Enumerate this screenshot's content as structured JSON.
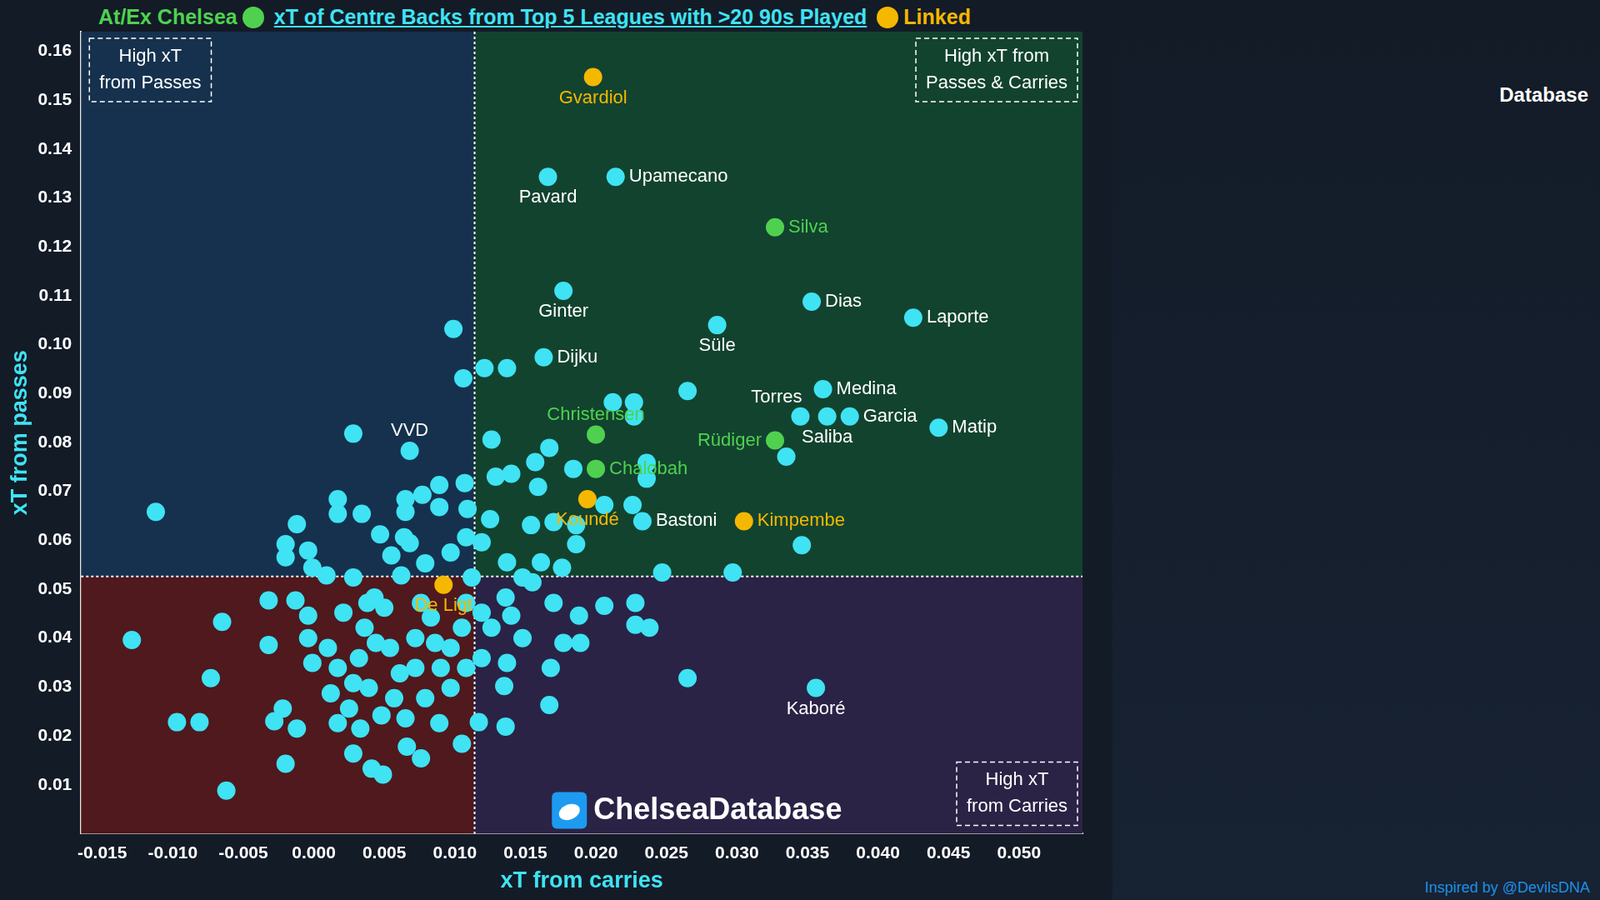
{
  "chart_data": {
    "type": "scatter",
    "title": "xT of Centre Backs from Top 5 Leagues with >20 90s Played",
    "x_label": "xT from carries",
    "y_label": "xT from passes",
    "xlim": [
      -0.0165,
      0.0545
    ],
    "ylim": [
      0,
      0.164
    ],
    "xticks": [
      -0.015,
      {
        "value": -0.01,
        "label": "-0.010"
      },
      -0.005,
      {
        "value": 0,
        "label": "0.000"
      },
      0.005,
      {
        "value": 0.01,
        "label": "0.010"
      },
      0.015,
      {
        "value": 0.02,
        "label": "0.020"
      },
      0.025,
      {
        "value": 0.03,
        "label": "0.030"
      },
      0.035,
      {
        "value": 0.04,
        "label": "0.040"
      },
      0.045,
      {
        "value": 0.05,
        "label": "0.050"
      }
    ],
    "yticks": [
      0.01,
      0.02,
      0.03,
      0.04,
      0.05,
      0.06,
      0.07,
      0.08,
      0.09,
      {
        "value": 0.1,
        "label": "0.10"
      },
      0.11,
      0.12,
      0.13,
      0.14,
      0.15,
      0.16
    ],
    "grid": false,
    "legend": "top",
    "reference_lines": {
      "x": 0.0114,
      "y": 0.0526
    },
    "quadrant_labels": {
      "top_left": [
        "High xT",
        "from Passes"
      ],
      "top_right": [
        "High xT from",
        "Passes & Carries"
      ],
      "bottom_right": [
        "High xT",
        "from Carries"
      ]
    },
    "watermark": "ChelseaDatabase",
    "logo_text": "Database",
    "credit": "Inspired by @DevilsDNA",
    "series": [
      {
        "color": "#3fe3f3",
        "points": [
          {
            "x": 0.0166,
            "y": 0.1343,
            "label": "Pavard"
          },
          {
            "x": 0.0214,
            "y": 0.1343,
            "label": "Upamecano"
          },
          {
            "x": 0.0177,
            "y": 0.111,
            "label": "Ginter"
          },
          {
            "x": 0.0353,
            "y": 0.1088,
            "label": "Dias"
          },
          {
            "x": 0.0425,
            "y": 0.1055,
            "label": "Laporte"
          },
          {
            "x": 0.0286,
            "y": 0.104,
            "label": "Süle"
          },
          {
            "x": 0.0163,
            "y": 0.0974,
            "label": "Dijku"
          },
          {
            "x": 0.0361,
            "y": 0.0909,
            "label": "Medina"
          },
          {
            "x": 0.0345,
            "y": 0.0853,
            "label": "Torres"
          },
          {
            "x": 0.0364,
            "y": 0.0853,
            "label": "Saliba"
          },
          {
            "x": 0.038,
            "y": 0.0853,
            "label": "Garcia"
          },
          {
            "x": 0.0443,
            "y": 0.083,
            "label": "Matip"
          },
          {
            "x": 0.0233,
            "y": 0.0639,
            "label": "Bastoni"
          },
          {
            "x": 0.0068,
            "y": 0.0783,
            "label": "VVD"
          },
          {
            "x": 0.0356,
            "y": 0.0298,
            "label": "Kaboré"
          },
          {
            "x": 0.0099,
            "y": 0.1032
          },
          {
            "x": 0.0121,
            "y": 0.0952
          },
          {
            "x": 0.0137,
            "y": 0.0952
          },
          {
            "x": 0.0106,
            "y": 0.0931
          },
          {
            "x": 0.0028,
            "y": 0.0818
          },
          {
            "x": -0.0112,
            "y": 0.0658
          },
          {
            "x": 0.0126,
            "y": 0.0806
          },
          {
            "x": 0.0167,
            "y": 0.0789
          },
          {
            "x": 0.0157,
            "y": 0.076
          },
          {
            "x": 0.0184,
            "y": 0.0746
          },
          {
            "x": 0.0212,
            "y": 0.0882
          },
          {
            "x": 0.0227,
            "y": 0.0882
          },
          {
            "x": 0.0227,
            "y": 0.0853
          },
          {
            "x": 0.0265,
            "y": 0.0905
          },
          {
            "x": 0.0236,
            "y": 0.0758
          },
          {
            "x": 0.0236,
            "y": 0.0726
          },
          {
            "x": 0.0335,
            "y": 0.0771
          },
          {
            "x": 0.0346,
            "y": 0.059
          },
          {
            "x": 0.0297,
            "y": 0.0534
          },
          {
            "x": 0.0247,
            "y": 0.0534
          },
          {
            "x": 0.0159,
            "y": 0.0709
          },
          {
            "x": 0.0129,
            "y": 0.073
          },
          {
            "x": 0.014,
            "y": 0.0736
          },
          {
            "x": 0.0107,
            "y": 0.0717
          },
          {
            "x": 0.0089,
            "y": 0.0713
          },
          {
            "x": 0.0109,
            "y": 0.0664
          },
          {
            "x": 0.0089,
            "y": 0.0668
          },
          {
            "x": 0.0065,
            "y": 0.0658
          },
          {
            "x": 0.0077,
            "y": 0.0693
          },
          {
            "x": 0.0065,
            "y": 0.0684
          },
          {
            "x": 0.0017,
            "y": 0.0684
          },
          {
            "x": 0.0017,
            "y": 0.0654
          },
          {
            "x": 0.0034,
            "y": 0.0654
          },
          {
            "x": -0.0012,
            "y": 0.0633
          },
          {
            "x": -0.002,
            "y": 0.0592
          },
          {
            "x": -0.002,
            "y": 0.0565
          },
          {
            "x": -0.0004,
            "y": 0.0579
          },
          {
            "x": 0.0047,
            "y": 0.0612
          },
          {
            "x": 0.0064,
            "y": 0.0606
          },
          {
            "x": 0.0068,
            "y": 0.0594
          },
          {
            "x": 0.0055,
            "y": 0.0569
          },
          {
            "x": 0.0079,
            "y": 0.0553
          },
          {
            "x": 0.0097,
            "y": 0.0575
          },
          {
            "x": 0.0108,
            "y": 0.0606
          },
          {
            "x": 0.0119,
            "y": 0.0596
          },
          {
            "x": 0.0125,
            "y": 0.0643
          },
          {
            "x": 0.0154,
            "y": 0.0631
          },
          {
            "x": 0.017,
            "y": 0.0637
          },
          {
            "x": 0.0186,
            "y": 0.0631
          },
          {
            "x": 0.0186,
            "y": 0.0592
          },
          {
            "x": 0.0206,
            "y": 0.0672
          },
          {
            "x": 0.0226,
            "y": 0.0672
          },
          {
            "x": 0.0137,
            "y": 0.0555
          },
          {
            "x": 0.0161,
            "y": 0.0555
          },
          {
            "x": 0.0176,
            "y": 0.0544
          },
          {
            "x": 0.0009,
            "y": 0.0528
          },
          {
            "x": 0.0028,
            "y": 0.0524
          },
          {
            "x": -0.0129,
            "y": 0.0396
          },
          {
            "x": -0.0065,
            "y": 0.0433
          },
          {
            "x": -0.0032,
            "y": 0.0477
          },
          {
            "x": -0.0032,
            "y": 0.0386
          },
          {
            "x": -0.0013,
            "y": 0.0477
          },
          {
            "x": -0.0004,
            "y": 0.0446
          },
          {
            "x": -0.0073,
            "y": 0.0318
          },
          {
            "x": -0.0097,
            "y": 0.0228
          },
          {
            "x": -0.0081,
            "y": 0.0228
          },
          {
            "x": -0.0062,
            "y": 0.0088
          },
          {
            "x": -0.0028,
            "y": 0.023
          },
          {
            "x": -0.0022,
            "y": 0.0256
          },
          {
            "x": -0.0012,
            "y": 0.0215
          },
          {
            "x": -0.002,
            "y": 0.0143
          },
          {
            "x": -0.0001,
            "y": 0.0349
          },
          {
            "x": 0.001,
            "y": 0.038
          },
          {
            "x": 0.0017,
            "y": 0.0339
          },
          {
            "x": 0.0012,
            "y": 0.0287
          },
          {
            "x": 0.0025,
            "y": 0.0256
          },
          {
            "x": 0.0028,
            "y": 0.0164
          },
          {
            "x": 0.0041,
            "y": 0.0133
          },
          {
            "x": 0.0049,
            "y": 0.0121
          },
          {
            "x": 0.0033,
            "y": 0.0215
          },
          {
            "x": 0.0048,
            "y": 0.0242
          },
          {
            "x": 0.0039,
            "y": 0.0298
          },
          {
            "x": 0.0032,
            "y": 0.0359
          },
          {
            "x": 0.0036,
            "y": 0.0421
          },
          {
            "x": 0.0038,
            "y": 0.0472
          },
          {
            "x": 0.005,
            "y": 0.0462
          },
          {
            "x": 0.0054,
            "y": 0.038
          },
          {
            "x": 0.0061,
            "y": 0.0328
          },
          {
            "x": 0.0065,
            "y": 0.0236
          },
          {
            "x": 0.0066,
            "y": 0.0178
          },
          {
            "x": 0.0076,
            "y": 0.0154
          },
          {
            "x": 0.0079,
            "y": 0.0277
          },
          {
            "x": 0.0072,
            "y": 0.04
          },
          {
            "x": 0.0083,
            "y": 0.0442
          },
          {
            "x": 0.0076,
            "y": 0.0472
          },
          {
            "x": 0.0089,
            "y": 0.0226
          },
          {
            "x": 0.009,
            "y": 0.0339
          },
          {
            "x": 0.0097,
            "y": 0.038
          },
          {
            "x": 0.0105,
            "y": 0.0421
          },
          {
            "x": 0.0108,
            "y": 0.0339
          },
          {
            "x": 0.0117,
            "y": 0.0228
          },
          {
            "x": 0.0136,
            "y": 0.0219
          },
          {
            "x": 0.0135,
            "y": 0.0302
          },
          {
            "x": 0.0119,
            "y": 0.0452
          },
          {
            "x": 0.0126,
            "y": 0.0421
          },
          {
            "x": 0.0136,
            "y": 0.0483
          },
          {
            "x": 0.014,
            "y": 0.0446
          },
          {
            "x": 0.0148,
            "y": 0.04
          },
          {
            "x": 0.0137,
            "y": 0.0349
          },
          {
            "x": 0.0155,
            "y": 0.0514
          },
          {
            "x": 0.0168,
            "y": 0.0339
          },
          {
            "x": 0.0167,
            "y": 0.0263
          },
          {
            "x": 0.0177,
            "y": 0.039
          },
          {
            "x": 0.0189,
            "y": 0.039
          },
          {
            "x": 0.0188,
            "y": 0.0446
          },
          {
            "x": 0.017,
            "y": 0.0472
          },
          {
            "x": 0.0206,
            "y": 0.0466
          },
          {
            "x": 0.0228,
            "y": 0.0472
          },
          {
            "x": 0.0228,
            "y": 0.0427
          },
          {
            "x": 0.0238,
            "y": 0.0421
          },
          {
            "x": 0.0265,
            "y": 0.0318
          },
          {
            "x": 0.0112,
            "y": 0.0524
          },
          {
            "x": -0.0001,
            "y": 0.0544
          },
          {
            "x": 0.0062,
            "y": 0.0528
          },
          {
            "x": 0.0043,
            "y": 0.0483
          },
          {
            "x": 0.0021,
            "y": 0.0452
          },
          {
            "x": -0.0004,
            "y": 0.04
          },
          {
            "x": 0.0097,
            "y": 0.0298
          },
          {
            "x": 0.0119,
            "y": 0.0359
          },
          {
            "x": 0.0057,
            "y": 0.0277
          },
          {
            "x": 0.0017,
            "y": 0.0226
          },
          {
            "x": 0.0105,
            "y": 0.0184
          },
          {
            "x": 0.0044,
            "y": 0.039
          },
          {
            "x": 0.0028,
            "y": 0.0308
          },
          {
            "x": 0.0072,
            "y": 0.0339
          },
          {
            "x": 0.0086,
            "y": 0.039
          },
          {
            "x": 0.0108,
            "y": 0.0472
          },
          {
            "x": 0.0148,
            "y": 0.0524
          }
        ]
      },
      {
        "name": "At/Ex Chelsea",
        "color": "#4fd14f",
        "points": [
          {
            "x": 0.0327,
            "y": 0.124,
            "label": "Silva"
          },
          {
            "x": 0.02,
            "y": 0.0816,
            "label": "Christensen"
          },
          {
            "x": 0.0327,
            "y": 0.0804,
            "label": "Rüdiger"
          },
          {
            "x": 0.02,
            "y": 0.0746,
            "label": "Chalobah"
          }
        ]
      },
      {
        "name": "Linked",
        "color": "#f5b800",
        "points": [
          {
            "x": 0.0198,
            "y": 0.1547,
            "label": "Gvardiol"
          },
          {
            "x": 0.0194,
            "y": 0.0684,
            "label": "Koundé"
          },
          {
            "x": 0.0305,
            "y": 0.0639,
            "label": "Kimpembe"
          },
          {
            "x": 0.0092,
            "y": 0.0509,
            "label": "De Ligt"
          }
        ]
      }
    ]
  }
}
